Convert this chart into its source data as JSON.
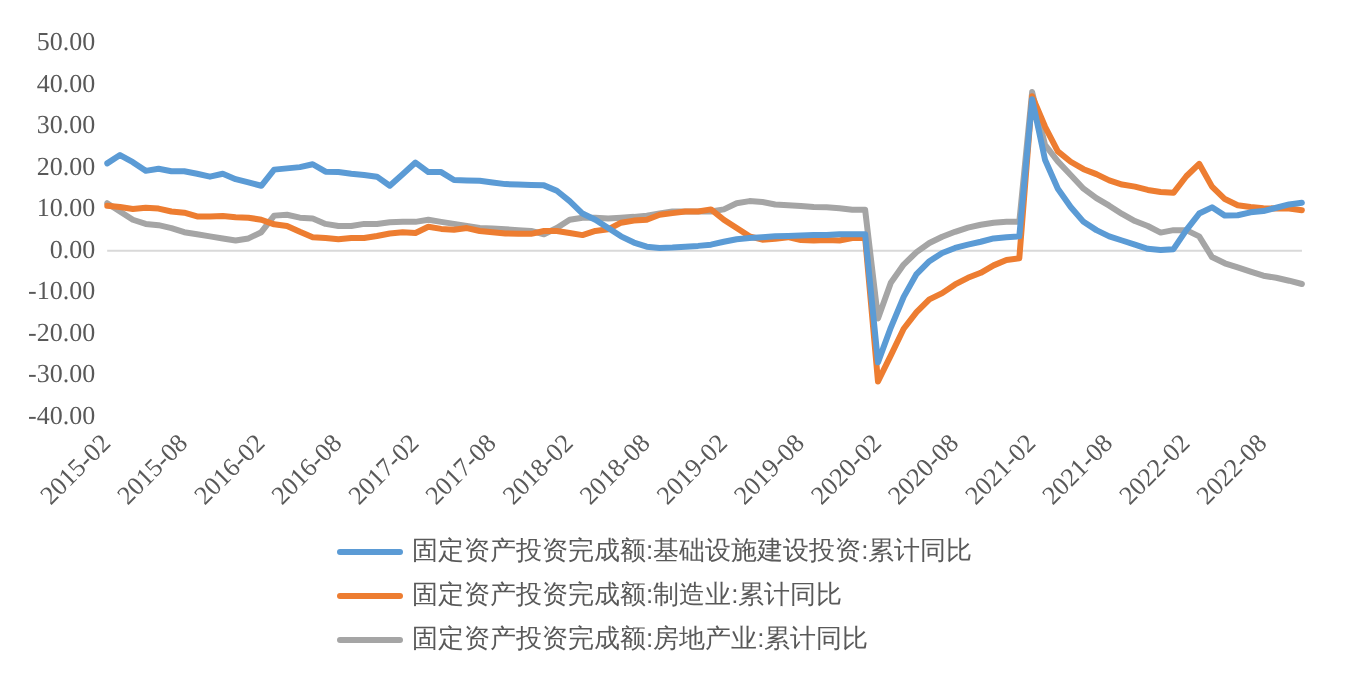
{
  "chart_data": {
    "type": "line",
    "categories": [
      "2015-02",
      null,
      null,
      null,
      null,
      null,
      "2015-08",
      null,
      null,
      null,
      null,
      null,
      "2016-02",
      null,
      null,
      null,
      null,
      null,
      "2016-08",
      null,
      null,
      null,
      null,
      null,
      "2017-02",
      null,
      null,
      null,
      null,
      null,
      "2017-08",
      null,
      null,
      null,
      null,
      null,
      "2018-02",
      null,
      null,
      null,
      null,
      null,
      "2018-08",
      null,
      null,
      null,
      null,
      null,
      "2019-02",
      null,
      null,
      null,
      null,
      null,
      "2019-08",
      null,
      null,
      null,
      null,
      null,
      "2020-02",
      null,
      null,
      null,
      null,
      null,
      "2020-08",
      null,
      null,
      null,
      null,
      null,
      "2021-02",
      null,
      null,
      null,
      null,
      null,
      "2021-08",
      null,
      null,
      null,
      null,
      null,
      "2022-02",
      null,
      null,
      null,
      null,
      null,
      "2022-08",
      null,
      null,
      null
    ],
    "series": [
      {
        "name": "固定资产投资完成额:基础设施建设投资:累计同比",
        "color": "#5b9bd5",
        "values": [
          21.1,
          23.1,
          21.4,
          19.3,
          19.8,
          19.2,
          19.2,
          18.6,
          17.9,
          18.6,
          17.3,
          16.5,
          15.7,
          19.6,
          19.9,
          20.2,
          20.9,
          19.1,
          19.0,
          18.6,
          18.3,
          17.9,
          15.7,
          18.5,
          21.3,
          19.0,
          19.0,
          17.1,
          17.0,
          16.9,
          16.5,
          16.1,
          16.0,
          15.9,
          15.8,
          14.5,
          12.0,
          9.0,
          7.5,
          5.5,
          3.5,
          2.0,
          1.0,
          0.7,
          0.8,
          1.0,
          1.2,
          1.5,
          2.2,
          2.8,
          3.1,
          3.3,
          3.5,
          3.6,
          3.7,
          3.8,
          3.8,
          4.0,
          4.0,
          4.0,
          -26.9,
          -18.5,
          -11.1,
          -5.6,
          -2.5,
          -0.5,
          0.7,
          1.5,
          2.2,
          3.0,
          3.3,
          3.5,
          36.6,
          22.0,
          15.0,
          10.6,
          7.0,
          5.0,
          3.5,
          2.5,
          1.5,
          0.5,
          0.2,
          0.4,
          5.0,
          9.0,
          10.5,
          8.5,
          8.6,
          9.3,
          9.6,
          10.4,
          11.2,
          11.6
        ]
      },
      {
        "name": "固定资产投资完成额:制造业:累计同比",
        "color": "#ed7d31",
        "values": [
          10.9,
          10.6,
          10.1,
          10.4,
          10.2,
          9.5,
          9.2,
          8.3,
          8.3,
          8.4,
          8.1,
          8.0,
          7.5,
          6.4,
          6.0,
          4.6,
          3.3,
          3.1,
          2.8,
          3.1,
          3.1,
          3.6,
          4.2,
          4.5,
          4.3,
          5.8,
          5.3,
          5.1,
          5.5,
          4.8,
          4.5,
          4.2,
          4.1,
          4.1,
          4.8,
          4.8,
          4.3,
          3.8,
          4.8,
          5.2,
          6.8,
          7.3,
          7.5,
          8.7,
          9.1,
          9.5,
          9.5,
          10.0,
          7.5,
          5.5,
          3.5,
          2.7,
          2.9,
          3.3,
          2.6,
          2.5,
          2.6,
          2.5,
          3.1,
          3.1,
          -31.5,
          -25.2,
          -18.8,
          -14.8,
          -11.7,
          -10.2,
          -8.1,
          -6.5,
          -5.3,
          -3.5,
          -2.2,
          -1.8,
          37.3,
          30.0,
          24.0,
          21.5,
          19.7,
          18.5,
          17.0,
          16.0,
          15.5,
          14.7,
          14.2,
          14.0,
          18.0,
          21.0,
          15.5,
          12.5,
          11.0,
          10.6,
          10.3,
          10.2,
          10.2,
          9.8
        ]
      },
      {
        "name": "固定资产投资完成额:房地产业:累计同比",
        "color": "#a5a5a5",
        "values": [
          11.5,
          9.5,
          7.5,
          6.5,
          6.2,
          5.5,
          4.5,
          4.0,
          3.5,
          3.0,
          2.5,
          3.0,
          4.5,
          8.5,
          8.7,
          8.0,
          7.8,
          6.5,
          6.0,
          6.0,
          6.5,
          6.5,
          6.9,
          7.0,
          7.0,
          7.5,
          7.0,
          6.5,
          6.0,
          5.5,
          5.4,
          5.2,
          5.0,
          4.8,
          4.0,
          5.5,
          7.5,
          8.0,
          8.0,
          7.8,
          8.0,
          8.2,
          8.5,
          9.0,
          9.5,
          9.5,
          9.5,
          9.5,
          10.0,
          11.5,
          12.0,
          11.8,
          11.2,
          11.0,
          10.8,
          10.6,
          10.5,
          10.3,
          9.9,
          9.9,
          -16.3,
          -7.7,
          -3.3,
          -0.3,
          1.9,
          3.4,
          4.6,
          5.6,
          6.3,
          6.8,
          7.0,
          7.0,
          38.3,
          25.6,
          21.6,
          18.3,
          15.0,
          12.7,
          10.9,
          8.9,
          7.2,
          6.0,
          4.4,
          5.0,
          5.0,
          3.5,
          -1.5,
          -3.0,
          -4.0,
          -5.0,
          -6.0,
          -6.5,
          -7.2,
          -8.0
        ]
      }
    ],
    "ylim": [
      -40,
      50
    ],
    "yticks": [
      {
        "value": -40,
        "label": "-40.00"
      },
      {
        "value": -30,
        "label": "-30.00"
      },
      {
        "value": -20,
        "label": "-20.00"
      },
      {
        "value": -10,
        "label": "-10.00"
      },
      {
        "value": 0,
        "label": "0.00"
      },
      {
        "value": 10,
        "label": "10.00"
      },
      {
        "value": 20,
        "label": "20.00"
      },
      {
        "value": 30,
        "label": "30.00"
      },
      {
        "value": 40,
        "label": "40.00"
      },
      {
        "value": 50,
        "label": "50.00"
      }
    ],
    "ref_lines": [
      {
        "axis": "y",
        "value": 0,
        "color": "#d9d9d9"
      }
    ],
    "grid": false,
    "legend": "bottom",
    "marker": "none",
    "line_style": "solid"
  }
}
